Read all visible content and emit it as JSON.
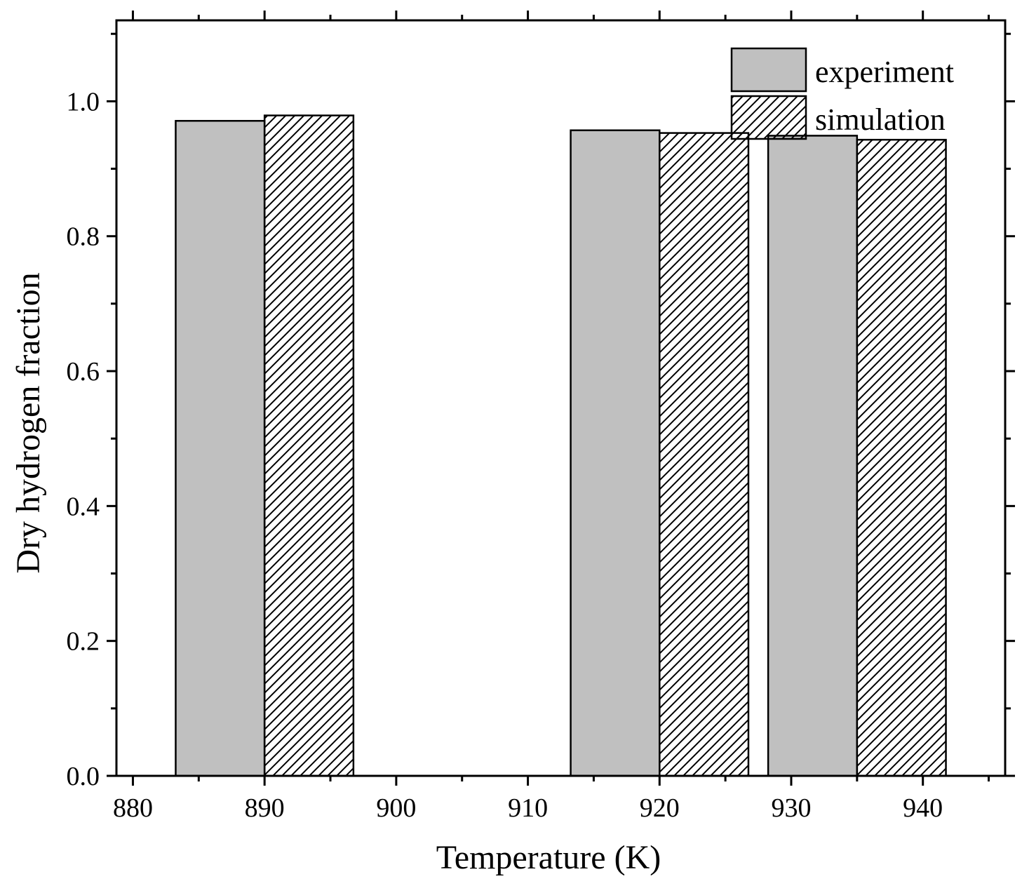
{
  "chart_data": {
    "type": "bar",
    "xlabel": "Temperature (K)",
    "ylabel": "Dry hydrogen fraction",
    "xlim": [
      878.75,
      946.25
    ],
    "ylim": [
      0,
      1.12
    ],
    "x_ticks": [
      "880",
      "890",
      "900",
      "910",
      "920",
      "930",
      "940"
    ],
    "x_tick_values": [
      880,
      890,
      900,
      910,
      920,
      930,
      940
    ],
    "y_ticks": [
      "0.0",
      "0.2",
      "0.4",
      "0.6",
      "0.8",
      "1.0"
    ],
    "y_tick_values": [
      0,
      0.2,
      0.4,
      0.6,
      0.8,
      1.0
    ],
    "bar_width": 6.75,
    "legend_position": "top-right",
    "grid": false,
    "series": [
      {
        "name": "experiment",
        "fill": "#c0c0c0",
        "pattern": "solid",
        "points": [
          {
            "x_start": 883.25,
            "x_end": 890,
            "value": 0.971
          },
          {
            "x_start": 913.25,
            "x_end": 920,
            "value": 0.957
          },
          {
            "x_start": 928.25,
            "x_end": 935,
            "value": 0.949
          }
        ]
      },
      {
        "name": "simulation",
        "fill": "#ffffff",
        "pattern": "hatch",
        "points": [
          {
            "x_start": 890,
            "x_end": 896.75,
            "value": 0.979
          },
          {
            "x_start": 920,
            "x_end": 926.75,
            "value": 0.953
          },
          {
            "x_start": 935,
            "x_end": 941.75,
            "value": 0.943
          }
        ]
      }
    ]
  }
}
